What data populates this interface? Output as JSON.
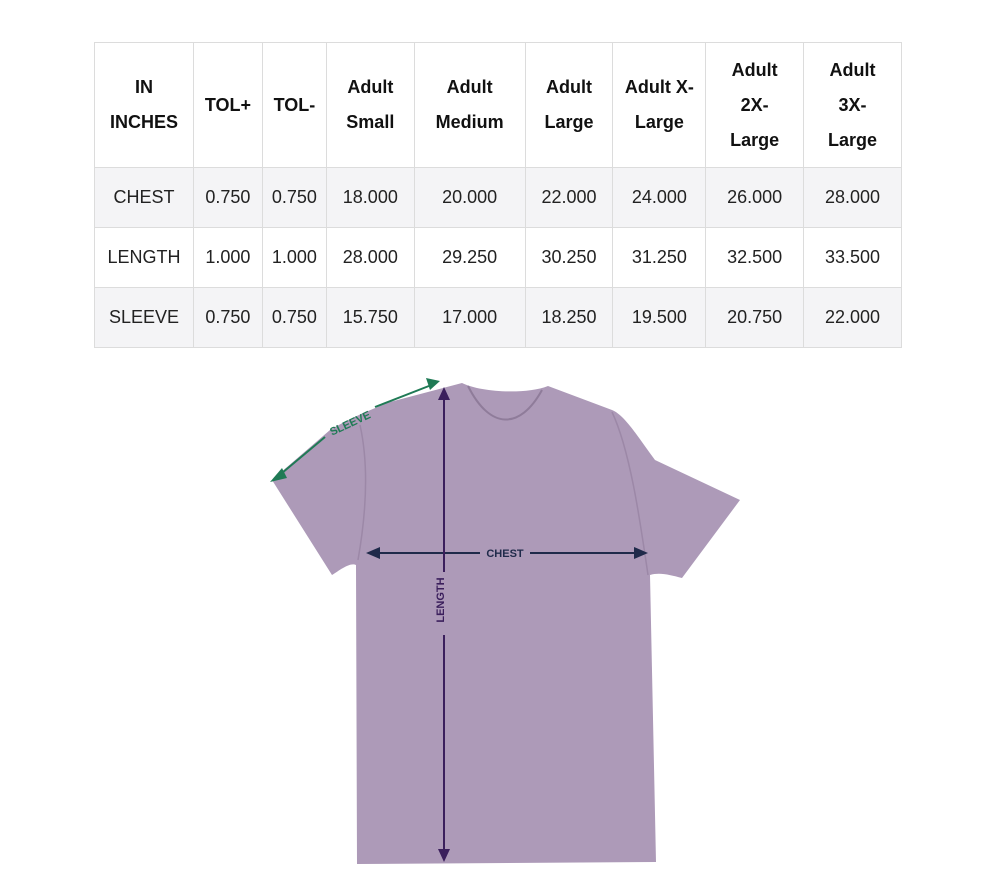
{
  "size_table": {
    "headers": [
      "IN INCHES",
      "TOL+",
      "TOL-",
      "Adult Small",
      "Adult Medium",
      "Adult Large",
      "Adult X-Large",
      "Adult 2X-Large",
      "Adult 3X-Large"
    ],
    "rows": [
      [
        "CHEST",
        "0.750",
        "0.750",
        "18.000",
        "20.000",
        "22.000",
        "24.000",
        "26.000",
        "28.000"
      ],
      [
        "LENGTH",
        "1.000",
        "1.000",
        "28.000",
        "29.250",
        "30.250",
        "31.250",
        "32.500",
        "33.500"
      ],
      [
        "SLEEVE",
        "0.750",
        "0.750",
        "15.750",
        "17.000",
        "18.250",
        "19.500",
        "20.750",
        "22.000"
      ]
    ]
  },
  "diagram": {
    "sleeve_label": "SLEEVE",
    "chest_label": "CHEST",
    "length_label": "LENGTH",
    "shirt_color": "#ad9ab8",
    "sleeve_color": "#1f7a55",
    "chest_color": "#1f2a4a",
    "length_color": "#3b1f5c"
  }
}
